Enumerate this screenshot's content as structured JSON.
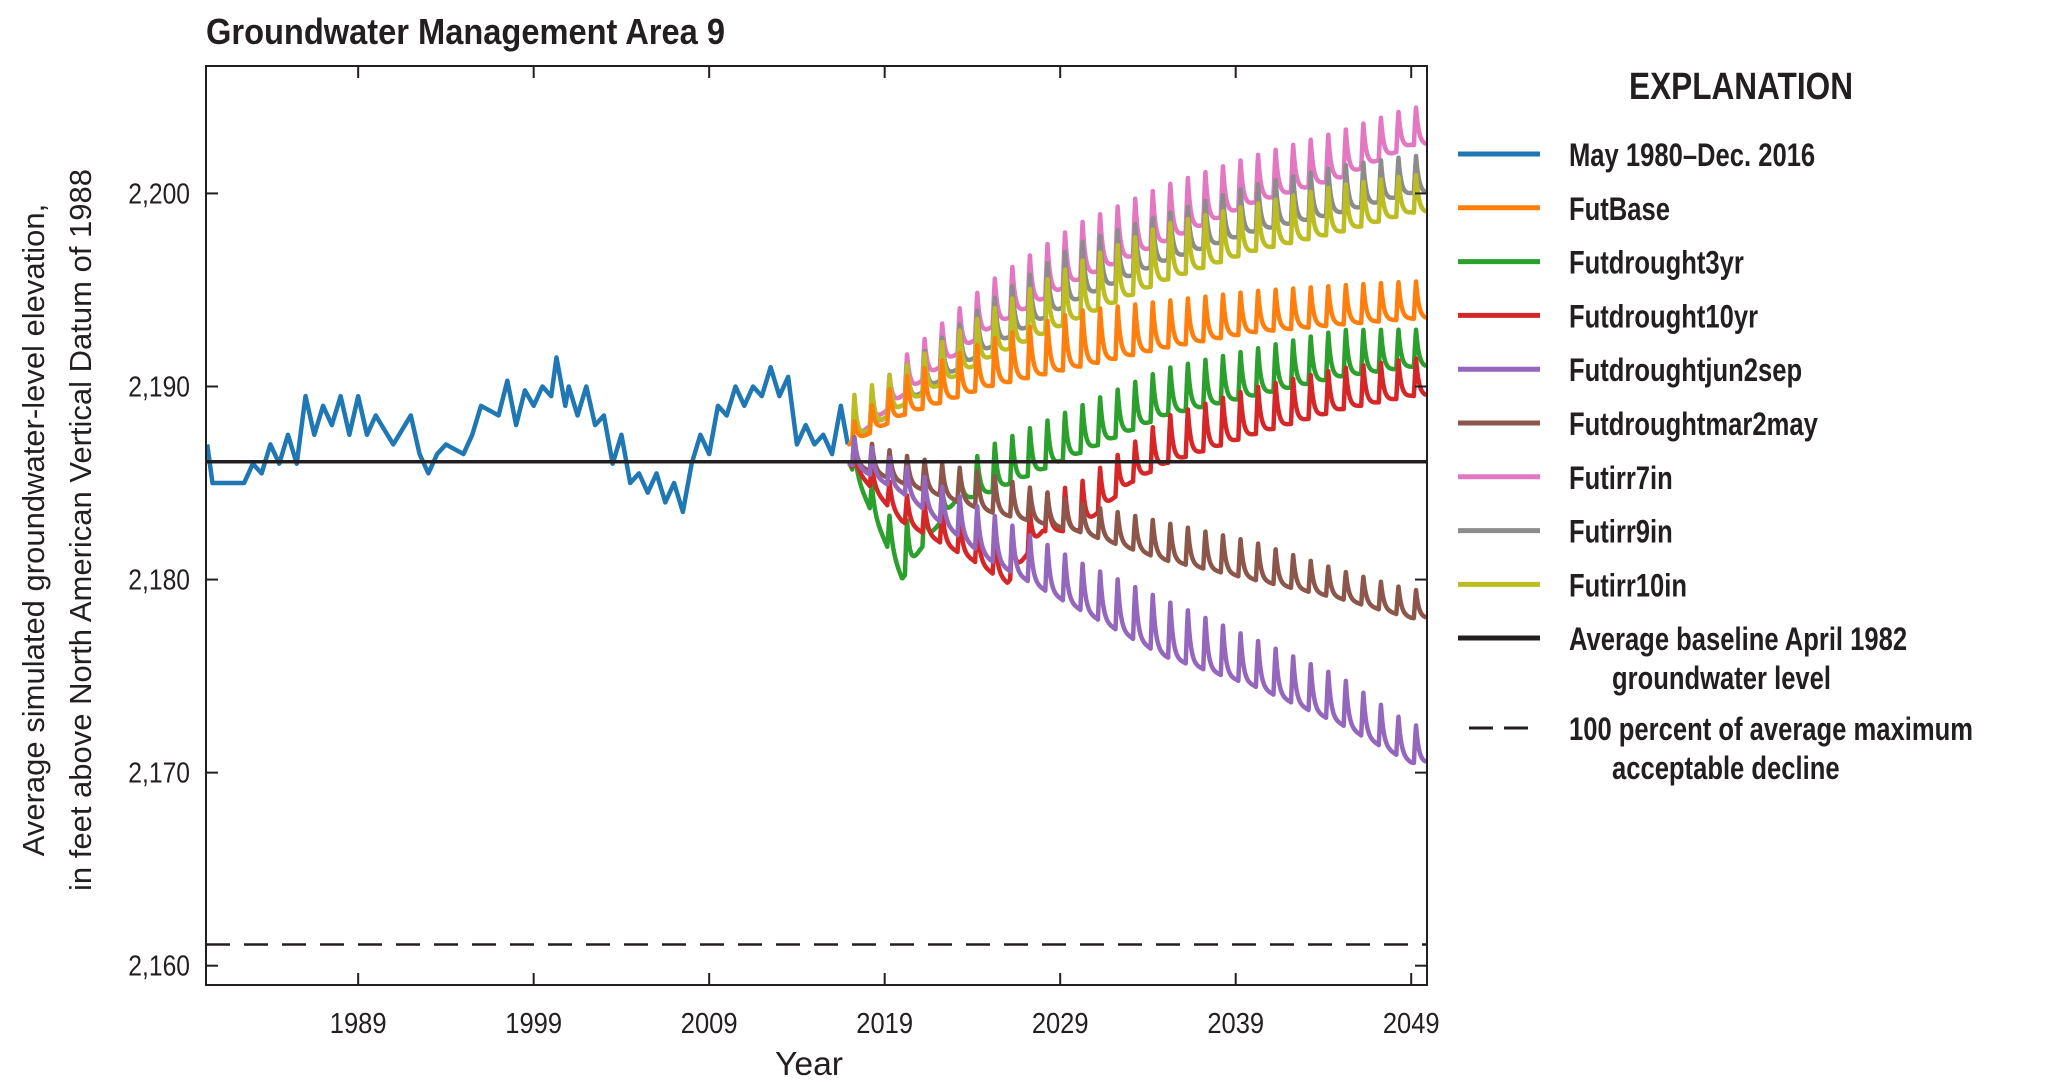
{
  "chart_data": {
    "type": "line",
    "title": "Groundwater Management Area 9",
    "xlabel": "Year",
    "ylabel": [
      "Average simulated groundwater-level elevation,",
      "in feet above North American Vertical Datum of 1988"
    ],
    "xlim": [
      1980.33,
      2049.9
    ],
    "ylim": [
      2159,
      2206.6
    ],
    "xticks": [
      1989,
      1999,
      2009,
      2019,
      2029,
      2039,
      2049
    ],
    "xtick_labels": [
      "1989",
      "1999",
      "2009",
      "2019",
      "2029",
      "2039",
      "2049"
    ],
    "yticks": [
      2160,
      2170,
      2180,
      2190,
      2200
    ],
    "ytick_labels": [
      "2,160",
      "2,170",
      "2,180",
      "2,190",
      "2,200"
    ],
    "grid": false,
    "legend": {
      "title": "EXPLANATION",
      "placement": "right"
    },
    "historical": {
      "name": "May 1980–Dec. 2016",
      "color": "#1f77b4",
      "x": [
        1980.4,
        1980.7,
        1981.5,
        1982.5,
        1983,
        1983.5,
        1984,
        1984.5,
        1985,
        1985.5,
        1986,
        1986.5,
        1987,
        1987.5,
        1988,
        1988.5,
        1989,
        1989.5,
        1990,
        1991,
        1992,
        1992.5,
        1993,
        1993.5,
        1994,
        1995,
        1995.5,
        1996,
        1997,
        1997.5,
        1998,
        1998.5,
        1999,
        1999.5,
        2000,
        2000.3,
        2000.8,
        2001,
        2001.5,
        2002,
        2002.5,
        2003,
        2003.5,
        2004,
        2004.5,
        2005,
        2005.5,
        2006,
        2006.5,
        2007,
        2007.5,
        2008,
        2008.5,
        2009,
        2009.5,
        2010,
        2010.5,
        2011,
        2011.5,
        2012,
        2012.5,
        2013,
        2013.5,
        2014,
        2014.5,
        2015,
        2015.5,
        2016,
        2016.5,
        2016.9
      ],
      "y": [
        2187,
        2185,
        2185,
        2185,
        2186,
        2185.5,
        2187,
        2186,
        2187.5,
        2186,
        2189.5,
        2187.5,
        2189,
        2188,
        2189.5,
        2187.5,
        2189.5,
        2187.5,
        2188.5,
        2187,
        2188.5,
        2186.5,
        2185.5,
        2186.5,
        2187,
        2186.5,
        2187.5,
        2189,
        2188.5,
        2190.3,
        2188,
        2189.8,
        2189,
        2190,
        2189.5,
        2191.5,
        2189,
        2190,
        2188.5,
        2190,
        2188,
        2188.5,
        2186,
        2187.5,
        2185,
        2185.5,
        2184.5,
        2185.5,
        2184,
        2185,
        2183.5,
        2186,
        2187.5,
        2186.5,
        2189,
        2188.5,
        2190,
        2189,
        2190,
        2189.5,
        2191,
        2189.5,
        2190.5,
        2187,
        2188,
        2187,
        2187.5,
        2186.5,
        2189,
        2187
      ]
    },
    "series": [
      {
        "name": "FutBase",
        "color": "#ff7f0e",
        "x": [
          2017,
          2020,
          2025,
          2030,
          2035,
          2040,
          2045,
          2049
        ],
        "annual_low": [
          2187,
          2188.5,
          2190,
          2191,
          2192,
          2192.8,
          2193.2,
          2193.5
        ],
        "annual_high": [
          2188,
          2190.5,
          2192.5,
          2194,
          2194.5,
          2195,
          2195.3,
          2195.5
        ]
      },
      {
        "name": "Futdrought3yr",
        "color": "#2ca02c",
        "x": [
          2017,
          2018,
          2019,
          2020,
          2021,
          2023,
          2025,
          2030,
          2035,
          2040,
          2045,
          2049
        ],
        "annual_low": [
          2186,
          2184,
          2182,
          2180,
          2181.5,
          2184,
          2184.5,
          2186.5,
          2188.5,
          2189.5,
          2190.5,
          2191
        ],
        "annual_high": [
          2187.5,
          2185.5,
          2183.5,
          2183,
          2183.5,
          2185.5,
          2187,
          2189,
          2191,
          2192,
          2193,
          2193
        ]
      },
      {
        "name": "Futdrought10yr",
        "color": "#d62728",
        "x": [
          2017,
          2020,
          2024,
          2026,
          2028,
          2030,
          2033,
          2035,
          2040,
          2045,
          2049
        ],
        "annual_low": [
          2186,
          2183,
          2181,
          2179.8,
          2182.5,
          2182.5,
          2185,
          2186,
          2187.5,
          2188.8,
          2189.5
        ],
        "annual_high": [
          2187,
          2184.5,
          2183,
          2182,
          2184.5,
          2185,
          2187,
          2188.5,
          2190,
          2191,
          2191.5
        ]
      },
      {
        "name": "Futdroughtjun2sep",
        "color": "#9467bd",
        "x": [
          2017,
          2020,
          2025,
          2028,
          2030,
          2035,
          2040,
          2045,
          2049
        ],
        "annual_low": [
          2186,
          2184.5,
          2181,
          2179.5,
          2178.5,
          2176,
          2174.5,
          2172.5,
          2170.5
        ],
        "annual_high": [
          2187.5,
          2186,
          2183.5,
          2182,
          2181,
          2179,
          2177,
          2175,
          2172.5
        ]
      },
      {
        "name": "Futdroughtmar2may",
        "color": "#8c564b",
        "x": [
          2017,
          2020,
          2025,
          2030,
          2035,
          2040,
          2045,
          2049
        ],
        "annual_low": [
          2186,
          2185,
          2183.5,
          2182.5,
          2181,
          2180,
          2179,
          2178
        ],
        "annual_high": [
          2187.5,
          2186.5,
          2185.5,
          2184,
          2183,
          2182,
          2180.5,
          2179.5
        ]
      },
      {
        "name": "Futirr7in",
        "color": "#e377c2",
        "x": [
          2017,
          2020,
          2025,
          2030,
          2035,
          2040,
          2045,
          2049
        ],
        "annual_low": [
          2187,
          2189.5,
          2193,
          2195.5,
          2197.5,
          2199.5,
          2200.8,
          2202.5
        ],
        "annual_high": [
          2188,
          2191.5,
          2195.5,
          2198.5,
          2200.5,
          2202,
          2203.3,
          2204.5
        ]
      },
      {
        "name": "Futirr9in",
        "color": "#8c8c8c",
        "x": [
          2017,
          2020,
          2025,
          2030,
          2035,
          2040,
          2045,
          2049
        ],
        "annual_low": [
          2187,
          2189,
          2192,
          2194.5,
          2196.5,
          2198,
          2199,
          2200
        ],
        "annual_high": [
          2188,
          2191,
          2194.5,
          2197.5,
          2199,
          2200.5,
          2201.5,
          2202
        ]
      },
      {
        "name": "Futirr10in",
        "color": "#bcbd22",
        "x": [
          2017,
          2020,
          2025,
          2030,
          2035,
          2040,
          2045,
          2049
        ],
        "annual_low": [
          2187,
          2189,
          2191.5,
          2193.5,
          2195.5,
          2197,
          2198,
          2199
        ],
        "annual_high": [
          2189.5,
          2191,
          2194,
          2196.5,
          2198.5,
          2199.5,
          2200.5,
          2201
        ]
      }
    ],
    "reference_lines": [
      {
        "name": "Average baseline April 1982 groundwater level",
        "label_lines": [
          "Average baseline April 1982",
          "groundwater level"
        ],
        "y": 2186.1,
        "color": "#231f20",
        "style": "solid"
      },
      {
        "name": "100 percent of average maximum acceptable decline",
        "label_lines": [
          "100 percent of average maximum",
          "acceptable decline"
        ],
        "y": 2161.1,
        "color": "#231f20",
        "style": "dashed"
      }
    ]
  }
}
